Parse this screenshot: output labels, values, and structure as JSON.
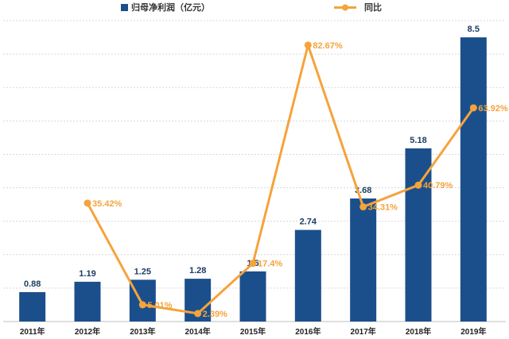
{
  "chart_data": {
    "type": "bar",
    "categories": [
      "2011年",
      "2012年",
      "2013年",
      "2014年",
      "2015年",
      "2016年",
      "2017年",
      "2018年",
      "2019年"
    ],
    "series": [
      {
        "name": "归母净利润（亿元）",
        "type": "bar",
        "axis": "primary",
        "values": [
          0.88,
          1.19,
          1.25,
          1.28,
          1.5,
          2.74,
          3.68,
          5.18,
          8.5
        ],
        "labels": [
          "0.88",
          "1.19",
          "1.25",
          "1.28",
          "1.5",
          "2.74",
          "3.68",
          "5.18",
          "8.5"
        ]
      },
      {
        "name": "同比",
        "type": "line",
        "axis": "secondary",
        "values": [
          null,
          35.42,
          5.01,
          2.39,
          17.4,
          82.67,
          34.31,
          40.79,
          63.92
        ],
        "labels": [
          null,
          "35.42%",
          "5.01%",
          "2.39%",
          "17.4%",
          "82.67%",
          "34.31%",
          "40.79%",
          "63.92%"
        ]
      }
    ],
    "ylim": [
      0,
      9
    ],
    "y2lim": [
      0,
      90
    ],
    "grid": true,
    "legend_position": "top",
    "colors": {
      "bar": "#1b4f8c",
      "bar_label": "#1c3e63",
      "line": "#f5a33b",
      "line_label": "#f5a33b"
    }
  }
}
